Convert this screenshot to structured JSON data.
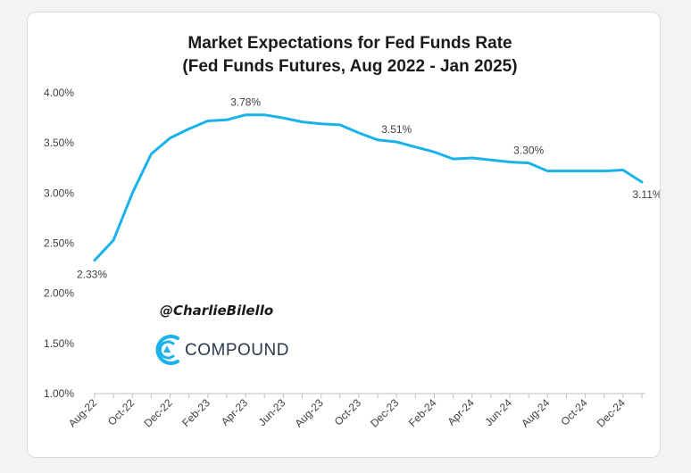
{
  "chart_data": {
    "type": "line",
    "title": "Market Expectations for Fed Funds Rate",
    "subtitle": "(Fed Funds Futures, Aug 2022 - Jan 2025)",
    "xlabel": "",
    "ylabel": "",
    "x": [
      "Aug-22",
      "Sep-22",
      "Oct-22",
      "Nov-22",
      "Dec-22",
      "Jan-23",
      "Feb-23",
      "Mar-23",
      "Apr-23",
      "May-23",
      "Jun-23",
      "Jul-23",
      "Aug-23",
      "Sep-23",
      "Oct-23",
      "Nov-23",
      "Dec-23",
      "Jan-24",
      "Feb-24",
      "Mar-24",
      "Apr-24",
      "May-24",
      "Jun-24",
      "Jul-24",
      "Aug-24",
      "Sep-24",
      "Oct-24",
      "Nov-24",
      "Dec-24",
      "Jan-25"
    ],
    "x_tick_labels": [
      "Aug-22",
      "Oct-22",
      "Dec-22",
      "Feb-23",
      "Apr-23",
      "Jun-23",
      "Aug-23",
      "Oct-23",
      "Dec-23",
      "Feb-24",
      "Apr-24",
      "Jun-24",
      "Aug-24",
      "Oct-24",
      "Dec-24"
    ],
    "series": [
      {
        "values": [
          2.33,
          2.53,
          3.0,
          3.39,
          3.55,
          3.64,
          3.72,
          3.73,
          3.78,
          3.78,
          3.75,
          3.71,
          3.69,
          3.68,
          3.6,
          3.53,
          3.51,
          3.46,
          3.41,
          3.34,
          3.35,
          3.33,
          3.31,
          3.3,
          3.22,
          3.22,
          3.22,
          3.22,
          3.23,
          3.11
        ],
        "color": "#1ab2ea"
      }
    ],
    "data_labels": [
      {
        "index": 0,
        "text": "2.33%"
      },
      {
        "index": 8,
        "text": "3.78%"
      },
      {
        "index": 16,
        "text": "3.51%"
      },
      {
        "index": 23,
        "text": "3.30%"
      },
      {
        "index": 29,
        "text": "3.11%"
      }
    ],
    "y_ticks": [
      "1.00%",
      "1.50%",
      "2.00%",
      "2.50%",
      "3.00%",
      "3.50%",
      "4.00%"
    ],
    "ylim": [
      1.0,
      4.0
    ],
    "grid": false,
    "legend": "none"
  },
  "watermark": {
    "handle": "@CharlieBilello",
    "brand": "COMPOUND",
    "brand_icon": "compound-logo-icon",
    "brand_color": "#1ab2ea"
  }
}
